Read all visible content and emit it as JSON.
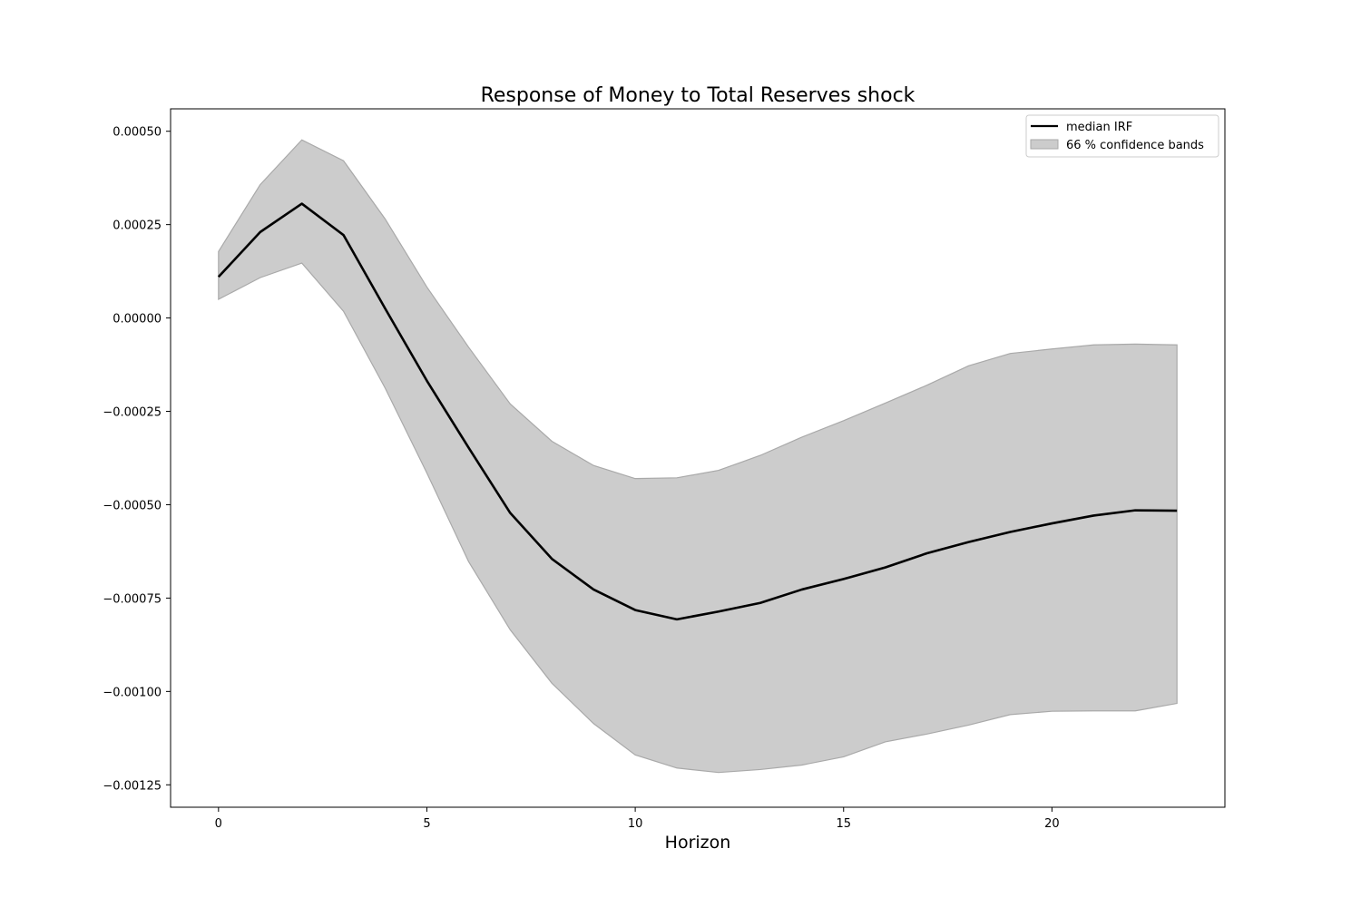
{
  "chart_data": {
    "type": "line",
    "title": "Response of Money to Total Reserves shock",
    "xlabel": "Horizon",
    "ylabel": "",
    "xlim": [
      -1.15,
      24.15
    ],
    "ylim": [
      -0.00131,
      0.00056
    ],
    "grid": false,
    "legend_position": "top-right",
    "x_ticks": [
      0,
      5,
      10,
      15,
      20
    ],
    "x_tick_labels": [
      "0",
      "5",
      "10",
      "15",
      "20"
    ],
    "y_ticks": [
      0.0005,
      0.00025,
      0.0,
      -0.00025,
      -0.0005,
      -0.00075,
      -0.001,
      -0.00125
    ],
    "y_tick_labels": [
      "0.00050",
      "0.00025",
      "0.00000",
      "−0.00025",
      "−0.00050",
      "−0.00075",
      "−0.00100",
      "−0.00125"
    ],
    "x": [
      0,
      1,
      2,
      3,
      4,
      5,
      6,
      7,
      8,
      9,
      10,
      11,
      12,
      13,
      14,
      15,
      16,
      17,
      18,
      19,
      20,
      21,
      22,
      23
    ],
    "series": [
      {
        "name": "median IRF",
        "kind": "line",
        "color": "#000000",
        "values": [
          0.00011,
          0.00023,
          0.000306,
          0.000222,
          2.5e-05,
          -0.000168,
          -0.000347,
          -0.000522,
          -0.000645,
          -0.000727,
          -0.000782,
          -0.000807,
          -0.000786,
          -0.000763,
          -0.000727,
          -0.000699,
          -0.000668,
          -0.00063,
          -0.0006,
          -0.000573,
          -0.00055,
          -0.000529,
          -0.000515,
          -0.000516
        ]
      },
      {
        "name": "66 % confidence bands",
        "kind": "band",
        "color": "#cccccc",
        "edge_color": "#a9a9a9",
        "upper": [
          0.000178,
          0.000357,
          0.000477,
          0.000421,
          0.000265,
          8.3e-05,
          -7.8e-05,
          -0.00023,
          -0.00033,
          -0.000395,
          -0.00043,
          -0.000428,
          -0.000408,
          -0.000368,
          -0.000319,
          -0.000275,
          -0.000228,
          -0.00018,
          -0.000128,
          -9.5e-05,
          -8.3e-05,
          -7.2e-05,
          -7e-05,
          -7.2e-05
        ],
        "lower": [
          5e-05,
          0.000108,
          0.000147,
          1.8e-05,
          -0.000188,
          -0.000415,
          -0.000652,
          -0.000835,
          -0.000978,
          -0.001086,
          -0.00117,
          -0.001205,
          -0.001217,
          -0.001209,
          -0.001197,
          -0.001175,
          -0.001135,
          -0.001114,
          -0.00109,
          -0.001062,
          -0.001053,
          -0.001052,
          -0.001052,
          -0.001032
        ]
      }
    ]
  }
}
